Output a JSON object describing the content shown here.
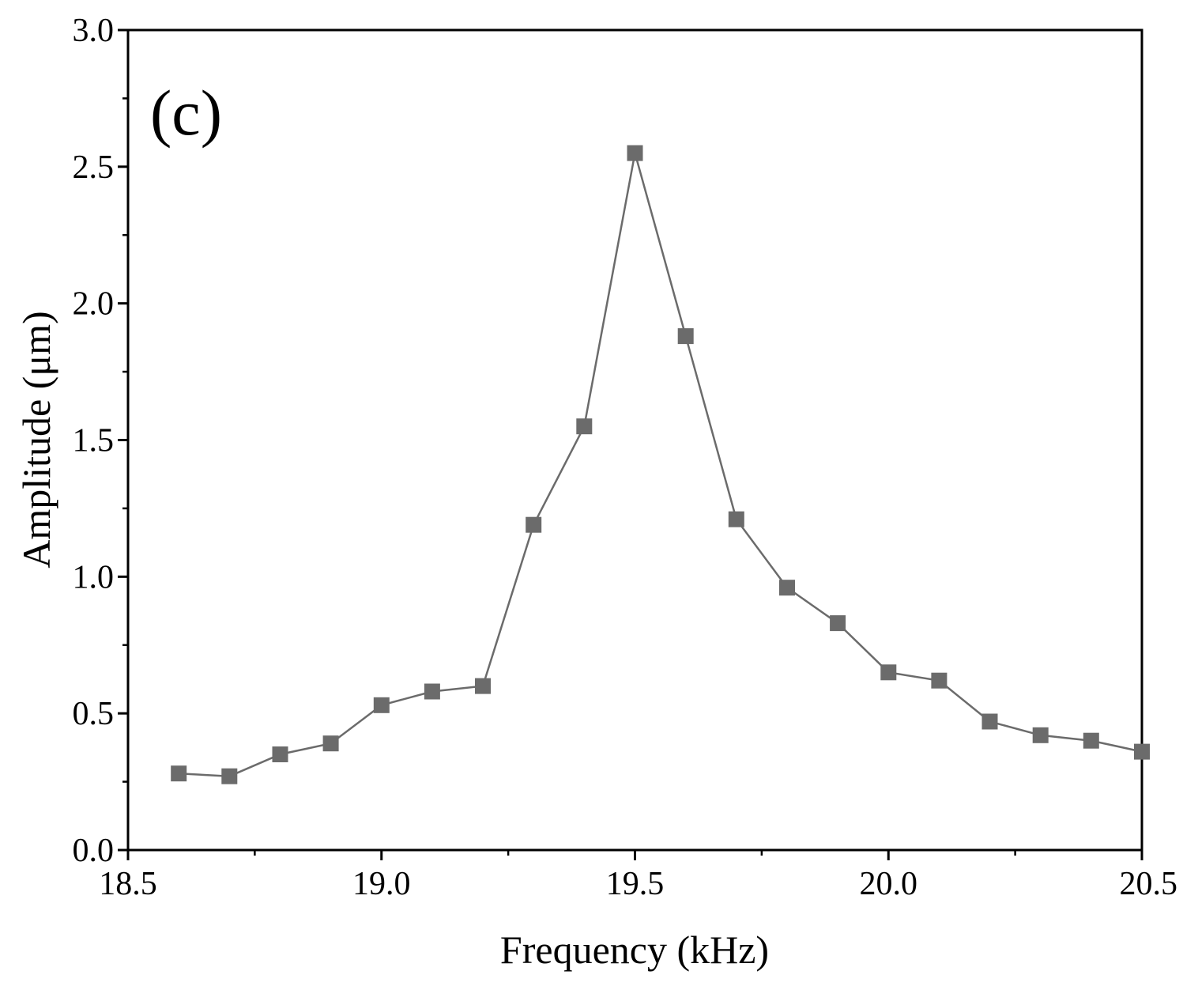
{
  "chart_data": {
    "type": "line",
    "panel_label": "(c)",
    "title": "",
    "xlabel": "Frequency (kHz)",
    "ylabel": "Amplitude (μm)",
    "xlim": [
      18.5,
      20.5
    ],
    "ylim": [
      0.0,
      3.0
    ],
    "x_ticks": [
      18.5,
      19.0,
      19.5,
      20.0,
      20.5
    ],
    "x_tick_labels": [
      "18.5",
      "19.0",
      "19.5",
      "20.0",
      "20.5"
    ],
    "y_ticks": [
      0.0,
      0.5,
      1.0,
      1.5,
      2.0,
      2.5,
      3.0
    ],
    "y_tick_labels": [
      "0.0",
      "0.5",
      "1.0",
      "1.5",
      "2.0",
      "2.5",
      "3.0"
    ],
    "x_minor_step": 0.25,
    "y_minor_step": 0.25,
    "grid": false,
    "series": [
      {
        "name": "Amplitude",
        "color": "#6b6b6b",
        "marker": "square",
        "x": [
          18.6,
          18.7,
          18.8,
          18.9,
          19.0,
          19.1,
          19.2,
          19.3,
          19.4,
          19.5,
          19.6,
          19.7,
          19.8,
          19.9,
          20.0,
          20.1,
          20.2,
          20.3,
          20.4,
          20.5
        ],
        "y": [
          0.28,
          0.27,
          0.35,
          0.39,
          0.53,
          0.58,
          0.6,
          1.19,
          1.55,
          2.55,
          1.88,
          1.21,
          0.96,
          0.83,
          0.65,
          0.62,
          0.47,
          0.42,
          0.4,
          0.36
        ]
      }
    ]
  }
}
